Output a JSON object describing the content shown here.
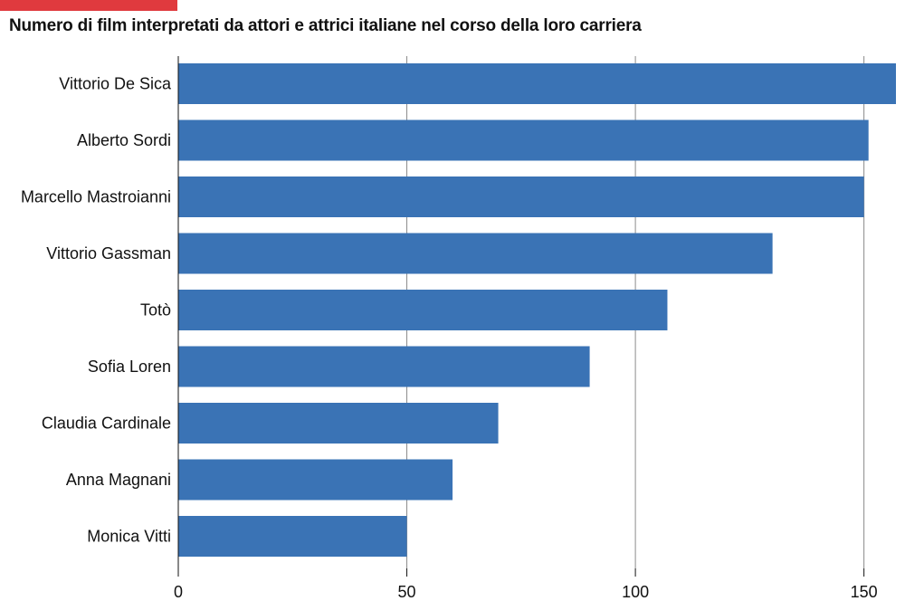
{
  "header": {
    "title": "Numero di film interpretati da attori e attrici italiane nel corso della loro carriera",
    "accent_color": "#e03a3e"
  },
  "chart_data": {
    "type": "bar",
    "orientation": "horizontal",
    "title": "Numero di film interpretati da attori e attrici italiane nel corso della loro carriera",
    "categories": [
      "Vittorio De Sica",
      "Alberto Sordi",
      "Marcello Mastroianni",
      "Vittorio Gassman",
      "Totò",
      "Sofia Loren",
      "Claudia Cardinale",
      "Anna Magnani",
      "Monica Vitti"
    ],
    "values": [
      157,
      151,
      150,
      130,
      107,
      90,
      70,
      60,
      50
    ],
    "xlim": [
      0,
      157
    ],
    "xticks": [
      0,
      50,
      100,
      150
    ],
    "xlabel": "",
    "ylabel": "",
    "grid": true,
    "bar_color": "#3a73b5"
  }
}
